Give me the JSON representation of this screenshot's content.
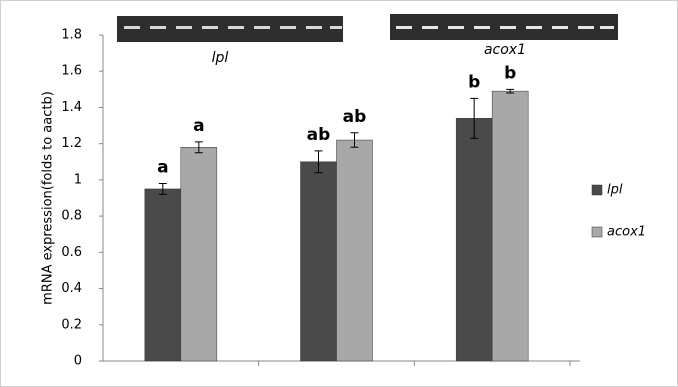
{
  "chart_data": {
    "type": "bar",
    "y_label": "mRNA expression(folds to aactb)",
    "annotations": [
      "lpl",
      "acox1"
    ],
    "categories": [
      null,
      null,
      null
    ],
    "series": [
      {
        "name": "lpl",
        "color": "#4a4a4a",
        "values": [
          0.95,
          1.1,
          1.34
        ],
        "errors": [
          0.03,
          0.06,
          0.11
        ],
        "significance": [
          "a",
          "ab",
          "b"
        ]
      },
      {
        "name": "acox1",
        "color": "#a8a8a8",
        "values": [
          1.18,
          1.22,
          1.49
        ],
        "errors": [
          0.03,
          0.04,
          0.01
        ],
        "significance": [
          "a",
          "ab",
          "b"
        ]
      }
    ],
    "ylim": [
      0,
      1.8
    ],
    "yticks": [
      0,
      0.2,
      0.4,
      0.6,
      0.8,
      1,
      1.2,
      1.4,
      1.6,
      1.8
    ],
    "grid": false,
    "legend": "right"
  }
}
